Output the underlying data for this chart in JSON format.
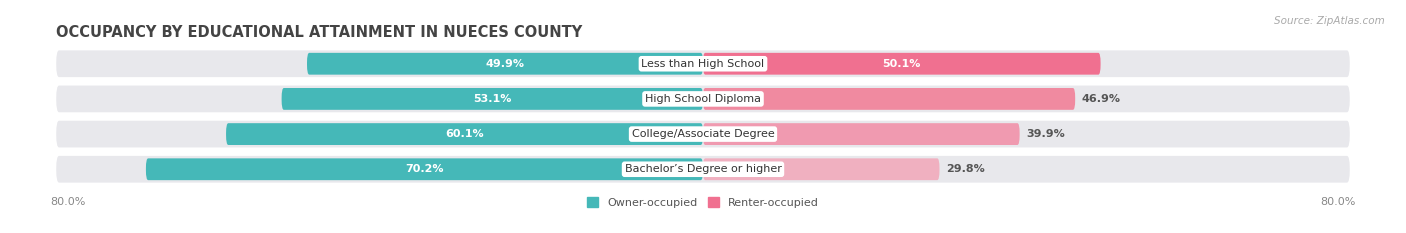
{
  "title": "OCCUPANCY BY EDUCATIONAL ATTAINMENT IN NUECES COUNTY",
  "source": "Source: ZipAtlas.com",
  "categories": [
    "Less than High School",
    "High School Diploma",
    "College/Associate Degree",
    "Bachelor’s Degree or higher"
  ],
  "owner_values": [
    49.9,
    53.1,
    60.1,
    70.2
  ],
  "renter_values": [
    50.1,
    46.9,
    39.9,
    29.8
  ],
  "owner_color": "#45B8B8",
  "renter_color": "#F07090",
  "renter_colors": [
    "#F07090",
    "#F08AA0",
    "#F09AB0",
    "#F0B0C0"
  ],
  "owner_label": "Owner-occupied",
  "renter_label": "Renter-occupied",
  "bg_color": "#ffffff",
  "row_bg_color": "#e8e8ec",
  "xlim": 80.0,
  "title_fontsize": 10.5,
  "source_fontsize": 7.5,
  "value_fontsize": 8,
  "cat_fontsize": 8,
  "bar_height": 0.62,
  "fig_width": 14.06,
  "fig_height": 2.33,
  "owner_label_inside": [
    true,
    true,
    true,
    true
  ],
  "renter_label_inside": [
    true,
    false,
    false,
    false
  ]
}
